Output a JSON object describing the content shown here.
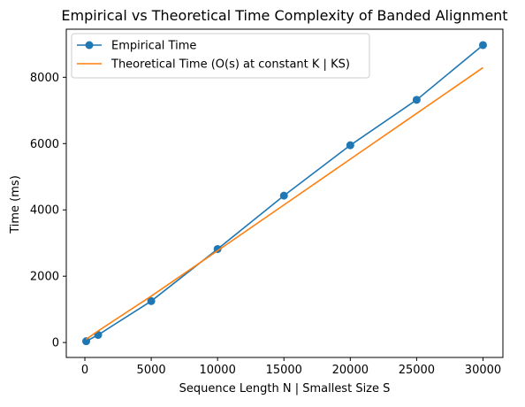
{
  "chart_data": {
    "type": "line",
    "title": "Empirical vs Theoretical Time Complexity of Banded Alignment",
    "xlabel": "Sequence Length N | Smallest Size S",
    "ylabel": "Time (ms)",
    "xlim": [
      -1400,
      31500
    ],
    "ylim": [
      -450,
      9450
    ],
    "xticks": [
      0,
      5000,
      10000,
      15000,
      20000,
      25000,
      30000
    ],
    "yticks": [
      0,
      2000,
      4000,
      6000,
      8000
    ],
    "grid": false,
    "legend_position": "upper-left",
    "series": [
      {
        "name": "Empirical Time",
        "color": "#1f77b4",
        "marker": "circle",
        "x": [
          100,
          1000,
          5000,
          10000,
          15000,
          20000,
          25000,
          30000
        ],
        "y": [
          40,
          230,
          1250,
          2820,
          4430,
          5950,
          7320,
          8970
        ]
      },
      {
        "name": "Theoretical Time (O(s) at constant K | KS)",
        "color": "#ff7f0e",
        "marker": "none",
        "x": [
          100,
          1000,
          5000,
          10000,
          15000,
          20000,
          25000,
          30000
        ],
        "y": [
          100,
          350,
          1400,
          2770,
          4150,
          5530,
          6910,
          8290
        ]
      }
    ]
  }
}
